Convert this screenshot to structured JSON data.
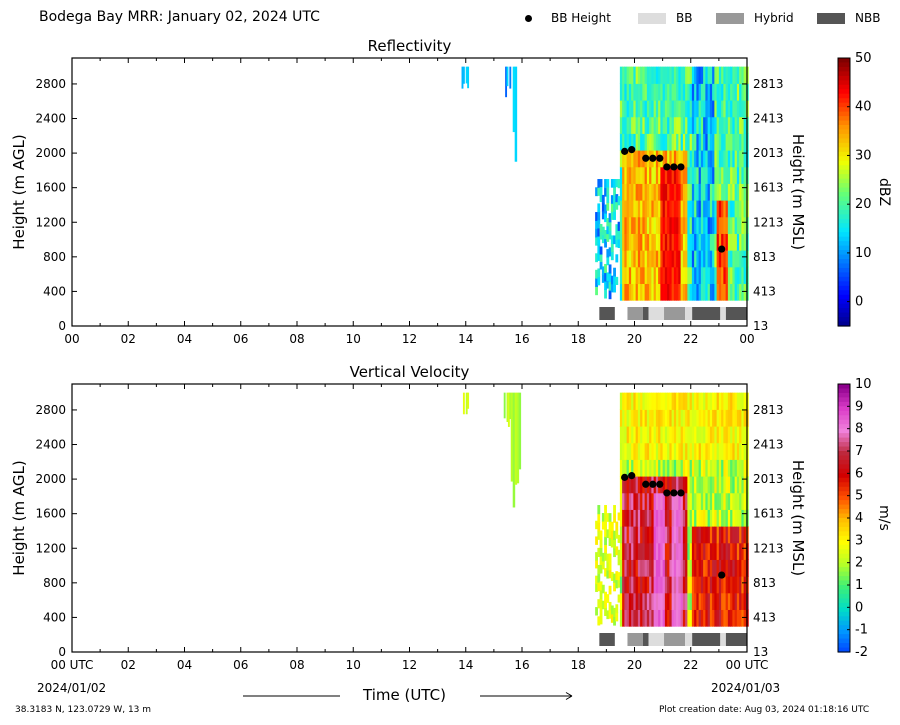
{
  "header": {
    "title": "Bodega Bay MRR:  January 02, 2024 UTC",
    "legend": {
      "bb_height": "BB Height",
      "bb": "BB",
      "hybrid": "Hybrid",
      "nbb": "NBB"
    }
  },
  "colors": {
    "bb": "#dddddd",
    "hybrid": "#999999",
    "nbb": "#555555"
  },
  "footer": {
    "time_label": "Time (UTC)",
    "start_date": "2024/01/02",
    "end_date": "2024/01/03",
    "location": "38.3183 N, 123.0729 W, 13 m",
    "creation": "Plot creation date: Aug 03, 2024 01:18:16 UTC"
  },
  "chart_data": [
    {
      "type": "heatmap",
      "title": "Reflectivity",
      "ylabel": "Height (m AGL)",
      "ylabel_right": "Height (m MSL)",
      "cbar_label": "dBZ",
      "cbar_ticks": [
        "50",
        "40",
        "30",
        "20",
        "10",
        "0"
      ],
      "cbar_range": [
        -5,
        50
      ],
      "x_ticks": [
        "00",
        "02",
        "04",
        "06",
        "08",
        "10",
        "12",
        "14",
        "16",
        "18",
        "20",
        "22",
        "00"
      ],
      "xlim_hours": [
        0,
        24
      ],
      "y_ticks": [
        "0",
        "400",
        "800",
        "1200",
        "1600",
        "2000",
        "2400",
        "2800"
      ],
      "y_ticks_right": [
        "13",
        "413",
        "813",
        "1213",
        "1613",
        "2013",
        "2413",
        "2813"
      ],
      "ylim": [
        0,
        3100
      ],
      "bb_points": [
        {
          "t": 19.65,
          "h": 2020
        },
        {
          "t": 19.9,
          "h": 2040
        },
        {
          "t": 20.4,
          "h": 1940
        },
        {
          "t": 20.65,
          "h": 1940
        },
        {
          "t": 20.9,
          "h": 1940
        },
        {
          "t": 21.15,
          "h": 1840
        },
        {
          "t": 21.4,
          "h": 1840
        },
        {
          "t": 21.65,
          "h": 1840
        },
        {
          "t": 23.1,
          "h": 890
        }
      ]
    },
    {
      "type": "heatmap",
      "title": "Vertical Velocity",
      "ylabel": "Height (m AGL)",
      "ylabel_right": "Height (m MSL)",
      "cbar_label": "m/s",
      "cbar_ticks": [
        "10",
        "9",
        "8",
        "7",
        "6",
        "5",
        "4",
        "3",
        "2",
        "1",
        "0",
        "-1",
        "-2"
      ],
      "cbar_range": [
        -2,
        10
      ],
      "x_ticks": [
        "00 UTC",
        "02",
        "04",
        "06",
        "08",
        "10",
        "12",
        "14",
        "16",
        "18",
        "20",
        "22",
        "00 UTC"
      ],
      "xlim_hours": [
        0,
        24
      ],
      "y_ticks": [
        "0",
        "400",
        "800",
        "1200",
        "1600",
        "2000",
        "2400",
        "2800"
      ],
      "y_ticks_right": [
        "13",
        "413",
        "813",
        "1213",
        "1613",
        "2013",
        "2413",
        "2813"
      ],
      "ylim": [
        0,
        3100
      ],
      "bb_points": [
        {
          "t": 19.65,
          "h": 2020
        },
        {
          "t": 19.9,
          "h": 2040
        },
        {
          "t": 20.4,
          "h": 1940
        },
        {
          "t": 20.65,
          "h": 1940
        },
        {
          "t": 20.9,
          "h": 1940
        },
        {
          "t": 21.15,
          "h": 1840
        },
        {
          "t": 21.4,
          "h": 1840
        },
        {
          "t": 21.65,
          "h": 1840
        },
        {
          "t": 23.1,
          "h": 890
        }
      ]
    }
  ],
  "bb_type_bar": [
    {
      "start": 18.75,
      "end": 19.3,
      "kind": "nbb"
    },
    {
      "start": 19.75,
      "end": 20.3,
      "kind": "hybrid"
    },
    {
      "start": 20.3,
      "end": 20.5,
      "kind": "nbb"
    },
    {
      "start": 20.5,
      "end": 21.05,
      "kind": "bb"
    },
    {
      "start": 21.05,
      "end": 21.8,
      "kind": "hybrid"
    },
    {
      "start": 21.8,
      "end": 22.05,
      "kind": "bb"
    },
    {
      "start": 22.05,
      "end": 23.05,
      "kind": "nbb"
    },
    {
      "start": 23.05,
      "end": 23.25,
      "kind": "bb"
    },
    {
      "start": 23.25,
      "end": 24.0,
      "kind": "nbb"
    }
  ]
}
